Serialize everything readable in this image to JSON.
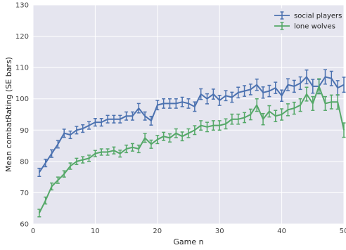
{
  "chart_data": {
    "type": "line",
    "title": "",
    "xlabel": "Game n",
    "ylabel": "Mean combatRating (SE bars)",
    "xlim": [
      0,
      50
    ],
    "ylim": [
      60,
      130
    ],
    "xticks": [
      0,
      10,
      20,
      30,
      40,
      50
    ],
    "yticks": [
      60,
      70,
      80,
      90,
      100,
      110,
      120,
      130
    ],
    "grid": true,
    "legend_position": "top-right",
    "background": "#e5e5ef",
    "series": [
      {
        "name": "social players",
        "color": "#4c72b0",
        "x": [
          1,
          2,
          3,
          4,
          5,
          6,
          7,
          8,
          9,
          10,
          11,
          12,
          13,
          14,
          15,
          16,
          17,
          18,
          19,
          20,
          21,
          22,
          23,
          24,
          25,
          26,
          27,
          28,
          29,
          30,
          31,
          32,
          33,
          34,
          35,
          36,
          37,
          38,
          39,
          40,
          41,
          42,
          43,
          44,
          45,
          46,
          47,
          48,
          49,
          50
        ],
        "y": [
          76.5,
          79.5,
          82.5,
          85.5,
          89,
          88.5,
          90,
          90.5,
          91.5,
          92.5,
          92.5,
          93.5,
          93.5,
          93.5,
          94.5,
          94.5,
          97,
          94.5,
          93,
          98,
          98.5,
          98.5,
          98.5,
          99,
          98.5,
          97.5,
          101.5,
          100,
          101.5,
          99.5,
          101,
          100.5,
          102,
          102.5,
          103,
          104.5,
          102,
          102.5,
          103.5,
          101,
          104.5,
          104,
          105,
          107,
          104,
          104,
          107,
          106.5,
          103.5,
          104.5
        ],
        "se": [
          1.3,
          1.2,
          1.2,
          1.2,
          1.3,
          1.2,
          1.2,
          1.2,
          1.2,
          1.2,
          1.2,
          1.2,
          1.2,
          1.2,
          1.3,
          1.3,
          1.5,
          1.3,
          1.4,
          1.5,
          1.5,
          1.5,
          1.5,
          1.5,
          1.5,
          1.5,
          1.7,
          1.6,
          1.6,
          1.6,
          1.6,
          1.6,
          1.7,
          1.7,
          1.7,
          1.8,
          1.8,
          1.8,
          1.8,
          1.8,
          1.9,
          1.9,
          2.0,
          2.2,
          2.2,
          2.2,
          2.3,
          2.3,
          2.3,
          2.4
        ]
      },
      {
        "name": "lone wolves",
        "color": "#55a868",
        "x": [
          1,
          2,
          3,
          4,
          5,
          6,
          7,
          8,
          9,
          10,
          11,
          12,
          13,
          14,
          15,
          16,
          17,
          18,
          19,
          20,
          21,
          22,
          23,
          24,
          25,
          26,
          27,
          28,
          29,
          30,
          31,
          32,
          33,
          34,
          35,
          36,
          37,
          38,
          39,
          40,
          41,
          42,
          43,
          44,
          45,
          46,
          47,
          48,
          49,
          50
        ],
        "y": [
          63.5,
          67.5,
          72,
          74,
          76,
          78.5,
          80,
          80.5,
          81,
          82.5,
          83,
          83,
          83.5,
          82.5,
          84,
          84.5,
          84,
          87.5,
          85.5,
          87,
          88,
          87.5,
          89,
          88,
          89,
          90,
          91.5,
          91,
          91.5,
          91.5,
          92,
          93.5,
          93.5,
          94,
          95,
          98,
          93.5,
          96,
          94.5,
          95,
          96.5,
          97,
          98,
          101.5,
          98.5,
          104,
          98.5,
          99,
          99,
          90
        ],
        "se": [
          1.2,
          1.1,
          1.1,
          1.0,
          1.0,
          1.0,
          1.0,
          1.0,
          1.0,
          1.0,
          1.0,
          1.0,
          1.1,
          1.1,
          1.2,
          1.2,
          1.2,
          1.4,
          1.3,
          1.3,
          1.3,
          1.3,
          1.4,
          1.4,
          1.4,
          1.4,
          1.5,
          1.5,
          1.5,
          1.5,
          1.6,
          1.6,
          1.6,
          1.6,
          1.7,
          2.0,
          1.8,
          1.8,
          1.8,
          1.8,
          1.9,
          1.9,
          2.0,
          2.2,
          2.2,
          2.4,
          2.2,
          2.2,
          2.3,
          2.3
        ]
      }
    ]
  }
}
